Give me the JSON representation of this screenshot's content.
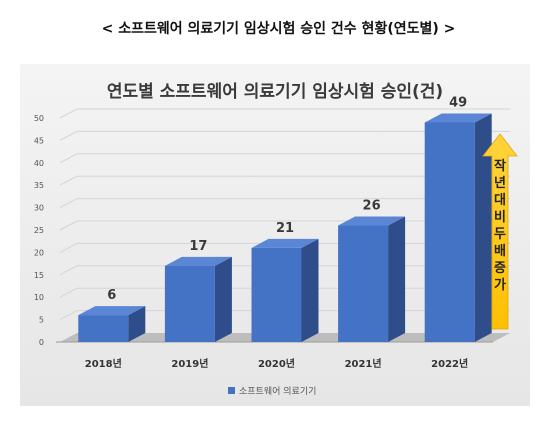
{
  "page_title": "< 소프트웨어 의료기기 임상시험 승인 건수 현황(연도별) >",
  "chart_data": {
    "type": "bar",
    "title": "연도별 소프트웨어 의료기기 임상시험 승인(건)",
    "categories": [
      "2018년",
      "2019년",
      "2020년",
      "2021년",
      "2022년"
    ],
    "series": [
      {
        "name": "소프트웨어 의료기기",
        "values": [
          6,
          17,
          21,
          26,
          49
        ]
      }
    ],
    "ylim": [
      0,
      50
    ],
    "yticks": [
      "0",
      "5",
      "10",
      "15",
      "20",
      "25",
      "30",
      "35",
      "40",
      "45",
      "50"
    ],
    "grid": true,
    "legend_position": "bottom",
    "annotation": {
      "text": "작년대비두배증가",
      "chars": [
        "작",
        "년",
        "대",
        "비",
        "두",
        "배",
        "증",
        "가"
      ]
    },
    "colors": {
      "bar_front": "#4472C4",
      "bar_side": "#2E4D8A",
      "bar_top": "#5B86D6",
      "floor": "#bdbdbd",
      "arrow": "#FFC000"
    }
  }
}
